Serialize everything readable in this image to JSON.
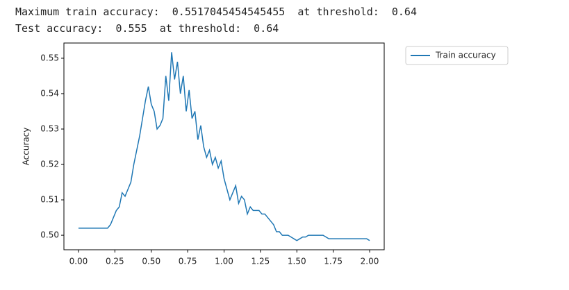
{
  "output": {
    "lines": [
      "Maximum train accuracy:  0.5517045454545455  at threshold:  0.64",
      "Test accuracy:  0.555  at threshold:  0.64"
    ]
  },
  "chart_data": {
    "type": "line",
    "ylabel": "Accuracy",
    "x": [
      0,
      0.02,
      0.04,
      0.06,
      0.08,
      0.1,
      0.12,
      0.14,
      0.16,
      0.18,
      0.2,
      0.22,
      0.24,
      0.26,
      0.28,
      0.3,
      0.32,
      0.34,
      0.36,
      0.38,
      0.4,
      0.42,
      0.44,
      0.46,
      0.48,
      0.5,
      0.52,
      0.54,
      0.56,
      0.58,
      0.6,
      0.62,
      0.64,
      0.66,
      0.68,
      0.7,
      0.72,
      0.74,
      0.76,
      0.78,
      0.8,
      0.82,
      0.84,
      0.86,
      0.88,
      0.9,
      0.92,
      0.94,
      0.96,
      0.98,
      1,
      1.02,
      1.04,
      1.06,
      1.08,
      1.1,
      1.12,
      1.14,
      1.16,
      1.18,
      1.2,
      1.22,
      1.24,
      1.26,
      1.28,
      1.3,
      1.32,
      1.34,
      1.36,
      1.38,
      1.4,
      1.42,
      1.44,
      1.46,
      1.48,
      1.5,
      1.52,
      1.54,
      1.56,
      1.58,
      1.6,
      1.62,
      1.64,
      1.66,
      1.68,
      1.7,
      1.72,
      1.74,
      1.76,
      1.78,
      1.8,
      1.82,
      1.84,
      1.86,
      1.88,
      1.9,
      1.92,
      1.94,
      1.96,
      1.98,
      2
    ],
    "series": [
      {
        "name": "Train accuracy",
        "color": "#1f77b4",
        "values": [
          0.502,
          0.502,
          0.502,
          0.502,
          0.502,
          0.502,
          0.502,
          0.502,
          0.502,
          0.502,
          0.502,
          0.503,
          0.505,
          0.507,
          0.508,
          0.512,
          0.511,
          0.513,
          0.515,
          0.52,
          0.524,
          0.528,
          0.533,
          0.538,
          0.542,
          0.537,
          0.535,
          0.53,
          0.531,
          0.533,
          0.545,
          0.538,
          0.5517,
          0.544,
          0.549,
          0.54,
          0.545,
          0.535,
          0.541,
          0.533,
          0.535,
          0.527,
          0.531,
          0.525,
          0.522,
          0.524,
          0.52,
          0.522,
          0.519,
          0.521,
          0.516,
          0.513,
          0.51,
          0.512,
          0.514,
          0.509,
          0.511,
          0.51,
          0.506,
          0.508,
          0.507,
          0.507,
          0.507,
          0.506,
          0.506,
          0.505,
          0.504,
          0.503,
          0.501,
          0.501,
          0.5,
          0.5,
          0.5,
          0.4995,
          0.499,
          0.4985,
          0.499,
          0.4995,
          0.4995,
          0.5,
          0.5,
          0.5,
          0.5,
          0.5,
          0.5,
          0.4995,
          0.499,
          0.499,
          0.499,
          0.499,
          0.499,
          0.499,
          0.499,
          0.499,
          0.499,
          0.499,
          0.499,
          0.499,
          0.499,
          0.499,
          0.4985
        ]
      }
    ],
    "xlim": [
      -0.1,
      2.1
    ],
    "ylim": [
      0.4959,
      0.5543
    ],
    "xticks": [
      {
        "value": 0,
        "label": "0.00"
      },
      {
        "value": 0.25,
        "label": "0.25"
      },
      {
        "value": 0.5,
        "label": "0.50"
      },
      {
        "value": 0.75,
        "label": "0.75"
      },
      {
        "value": 1,
        "label": "1.00"
      },
      {
        "value": 1.25,
        "label": "1.25"
      },
      {
        "value": 1.5,
        "label": "1.50"
      },
      {
        "value": 1.75,
        "label": "1.75"
      },
      {
        "value": 2,
        "label": "2.00"
      }
    ],
    "yticks": [
      {
        "value": 0.5,
        "label": "0.50"
      },
      0.51,
      0.52,
      0.53,
      0.54,
      0.55
    ],
    "grid": false,
    "legend": "outside-upper-right"
  }
}
